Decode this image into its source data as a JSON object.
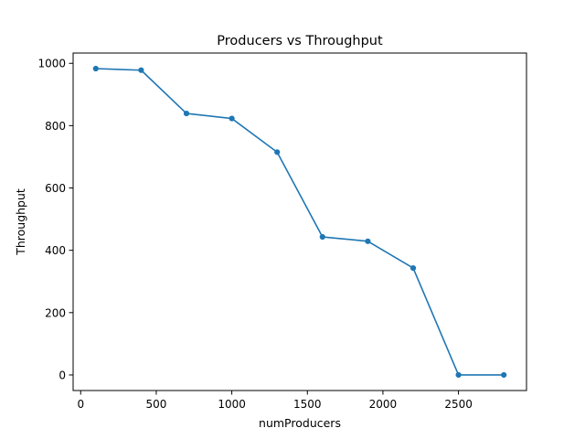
{
  "chart_data": {
    "type": "line",
    "title": "Producers vs Throughput",
    "xlabel": "numProducers",
    "ylabel": "Throughput",
    "xlim": [
      -50,
      2950
    ],
    "ylim": [
      -50,
      1033
    ],
    "xticks": [
      0,
      500,
      1000,
      1500,
      2000,
      2500
    ],
    "yticks": [
      0,
      200,
      400,
      600,
      800,
      1000
    ],
    "grid": false,
    "legend": "none",
    "series": [
      {
        "color": "#1f77b4",
        "marker": "circle",
        "points": [
          {
            "x": 100,
            "y": 983
          },
          {
            "x": 400,
            "y": 978
          },
          {
            "x": 700,
            "y": 839
          },
          {
            "x": 1000,
            "y": 823
          },
          {
            "x": 1300,
            "y": 715
          },
          {
            "x": 1600,
            "y": 443
          },
          {
            "x": 1900,
            "y": 429
          },
          {
            "x": 2200,
            "y": 343
          },
          {
            "x": 2500,
            "y": 0
          },
          {
            "x": 2800,
            "y": 0
          }
        ]
      }
    ]
  }
}
